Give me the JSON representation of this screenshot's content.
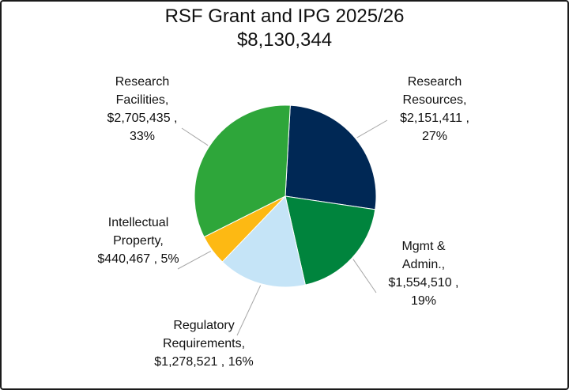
{
  "chart_data": {
    "type": "pie",
    "title": "RSF Grant and IPG 2025/26",
    "subtitle": "$8,130,344",
    "slices": [
      {
        "name": "Research Resources",
        "label_lines": [
          "Research",
          "Resources,",
          "$2,151,411 ,",
          "27%"
        ],
        "value": 2151411,
        "percent": 27,
        "color": "#002855"
      },
      {
        "name": "Mgmt & Admin.",
        "label_lines": [
          "Mgmt &",
          "Admin.,",
          "$1,554,510 ,",
          "19%"
        ],
        "value": 1554510,
        "percent": 19,
        "color": "#00843D"
      },
      {
        "name": "Regulatory Requirements",
        "label_lines": [
          "Regulatory",
          "Requirements,",
          "$1,278,521 , 16%"
        ],
        "value": 1278521,
        "percent": 16,
        "color": "#C5E4F7"
      },
      {
        "name": "Intellectual Property",
        "label_lines": [
          "Intellectual",
          "Property,",
          "$440,467 , 5%"
        ],
        "value": 440467,
        "percent": 5,
        "color": "#FDB913"
      },
      {
        "name": "Research Facilities",
        "label_lines": [
          "Research",
          "Facilities,",
          "$2,705,435 ,",
          "33%"
        ],
        "value": 2705435,
        "percent": 33,
        "color": "#2EA63A"
      }
    ],
    "legend": "none (data labels with leader lines)"
  }
}
